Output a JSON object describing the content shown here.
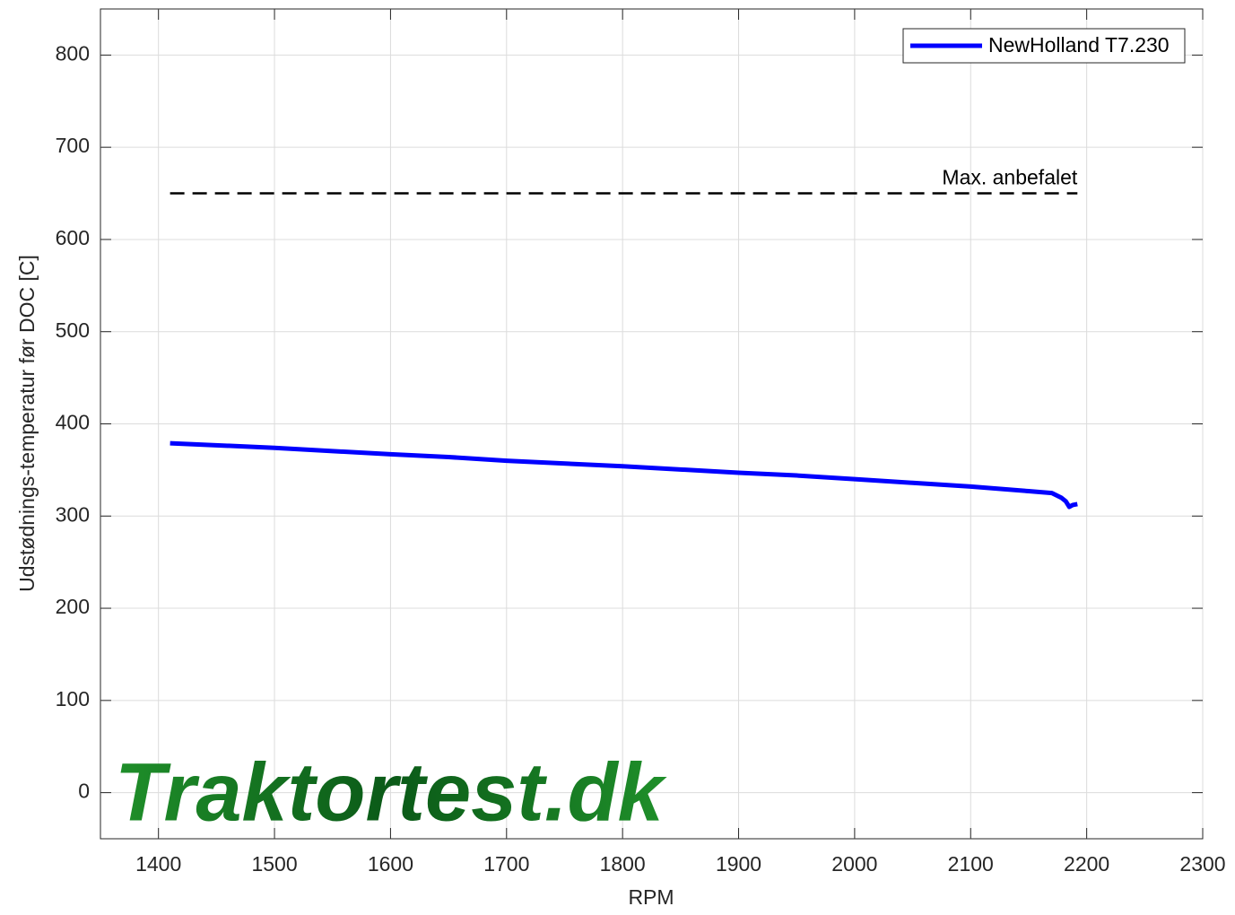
{
  "chart_data": {
    "type": "line",
    "xlabel": "RPM",
    "ylabel": "Udstødnings-temperatur før DOC [C]",
    "x": [
      1410,
      1500,
      1600,
      1650,
      1700,
      1800,
      1900,
      1950,
      2000,
      2050,
      2100,
      2150,
      2170,
      2178,
      2182,
      2185,
      2188,
      2192
    ],
    "series": [
      {
        "name": "NewHolland T7.230",
        "color": "#0000ff",
        "values": [
          379,
          374,
          367,
          364,
          360,
          354,
          347,
          344,
          340,
          336,
          332,
          327,
          325,
          320,
          316,
          310,
          312,
          313
        ]
      }
    ],
    "reference": {
      "value": 650,
      "label": "Max. anbefalet",
      "x": [
        1410,
        2192
      ],
      "color": "#000000"
    },
    "xlim": [
      1350,
      2300
    ],
    "xticks": [
      1400,
      1500,
      1600,
      1700,
      1800,
      1900,
      2000,
      2100,
      2200,
      2300
    ],
    "ylim": [
      -50,
      850
    ],
    "yticks": [
      0,
      100,
      200,
      300,
      400,
      500,
      600,
      700,
      800
    ],
    "grid": true,
    "legend": "top-right",
    "watermark": "Traktortest.dk"
  }
}
